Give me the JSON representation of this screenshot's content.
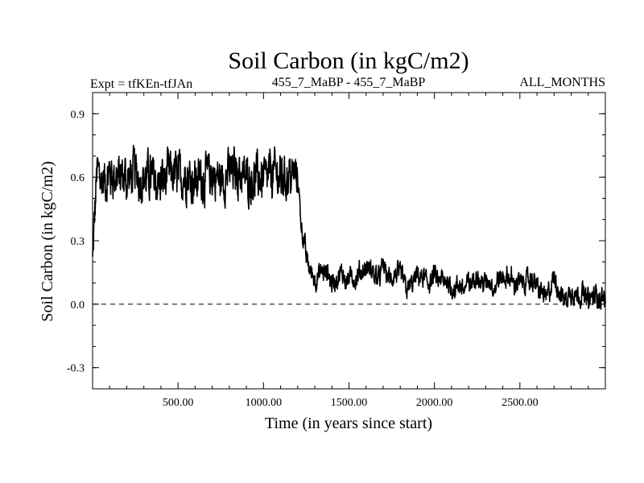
{
  "header": {
    "left_label": "Expt = tfKEn-tfJAn",
    "center_label": "455_7_MaBP - 455_7_MaBP",
    "right_label": "ALL_MONTHS"
  },
  "chart_data": {
    "type": "line",
    "title": "Soil Carbon (in kgC/m2)",
    "xlabel": "Time (in years since start)",
    "ylabel": "Soil Carbon (in kgC/m2)",
    "xlim": [
      0,
      3000
    ],
    "ylim": [
      -0.4,
      1.0
    ],
    "x_ticks": [
      500,
      1000,
      1500,
      2000,
      2500
    ],
    "x_tick_labels": [
      "500.00",
      "1000.00",
      "1500.00",
      "2000.00",
      "2500.00"
    ],
    "y_ticks": [
      -0.3,
      0.0,
      0.3,
      0.6,
      0.9
    ],
    "y_tick_labels": [
      "-0.3",
      "0.0",
      "0.3",
      "0.6",
      "0.9"
    ],
    "reference_line": {
      "y": 0.0,
      "style": "dashed"
    },
    "series_color": "#000000",
    "series": [
      {
        "x": [
          0,
          25,
          50,
          75,
          100,
          150,
          200,
          250,
          300,
          350,
          400,
          450,
          500,
          550,
          600,
          650,
          700,
          750,
          800,
          850,
          900,
          950,
          1000,
          1050,
          1100,
          1150,
          1180,
          1200,
          1220,
          1250,
          1280,
          1300,
          1350,
          1400,
          1450,
          1500,
          1550,
          1600,
          1650,
          1700,
          1750,
          1800,
          1850,
          1900,
          1950,
          2000,
          2050,
          2100,
          2150,
          2200,
          2250,
          2300,
          2350,
          2400,
          2450,
          2500,
          2550,
          2600,
          2650,
          2700,
          2750,
          2800,
          2850,
          2900,
          2950,
          3000
        ],
        "y": [
          0.2,
          0.62,
          0.6,
          0.58,
          0.61,
          0.6,
          0.58,
          0.62,
          0.6,
          0.6,
          0.58,
          0.61,
          0.6,
          0.62,
          0.59,
          0.6,
          0.61,
          0.58,
          0.62,
          0.63,
          0.6,
          0.6,
          0.59,
          0.62,
          0.6,
          0.61,
          0.62,
          0.6,
          0.4,
          0.22,
          0.15,
          0.13,
          0.14,
          0.1,
          0.12,
          0.14,
          0.1,
          0.16,
          0.12,
          0.18,
          0.1,
          0.12,
          0.09,
          0.12,
          0.1,
          0.12,
          0.08,
          0.1,
          0.06,
          0.1,
          0.12,
          0.1,
          0.08,
          0.12,
          0.1,
          0.1,
          0.11,
          0.08,
          0.04,
          0.1,
          0.02,
          0.05,
          0.06,
          0.04,
          0.03,
          0.0
        ]
      }
    ]
  }
}
